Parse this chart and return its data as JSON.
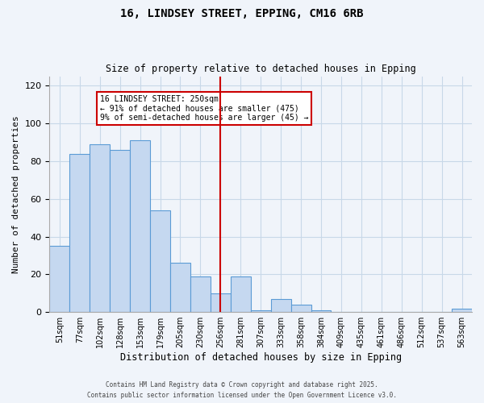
{
  "title": "16, LINDSEY STREET, EPPING, CM16 6RB",
  "subtitle": "Size of property relative to detached houses in Epping",
  "xlabel": "Distribution of detached houses by size in Epping",
  "ylabel": "Number of detached properties",
  "bar_labels": [
    "51sqm",
    "77sqm",
    "102sqm",
    "128sqm",
    "153sqm",
    "179sqm",
    "205sqm",
    "230sqm",
    "256sqm",
    "281sqm",
    "307sqm",
    "333sqm",
    "358sqm",
    "384sqm",
    "409sqm",
    "435sqm",
    "461sqm",
    "486sqm",
    "512sqm",
    "537sqm",
    "563sqm"
  ],
  "bar_values": [
    35,
    84,
    89,
    86,
    91,
    54,
    26,
    19,
    10,
    19,
    1,
    7,
    4,
    1,
    0,
    0,
    0,
    0,
    0,
    0,
    2
  ],
  "bar_color": "#c5d8f0",
  "bar_edge_color": "#5b9bd5",
  "vline_x": 8,
  "vline_color": "#cc0000",
  "annotation_title": "16 LINDSEY STREET: 250sqm",
  "annotation_line1": "← 91% of detached houses are smaller (475)",
  "annotation_line2": "9% of semi-detached houses are larger (45) →",
  "annotation_box_color": "#cc0000",
  "annotation_box_fill": "#ffffff",
  "ylim": [
    0,
    125
  ],
  "yticks": [
    0,
    20,
    40,
    60,
    80,
    100,
    120
  ],
  "footer1": "Contains HM Land Registry data © Crown copyright and database right 2025.",
  "footer2": "Contains public sector information licensed under the Open Government Licence v3.0.",
  "bg_color": "#f0f4fa",
  "grid_color": "#c8d8e8"
}
